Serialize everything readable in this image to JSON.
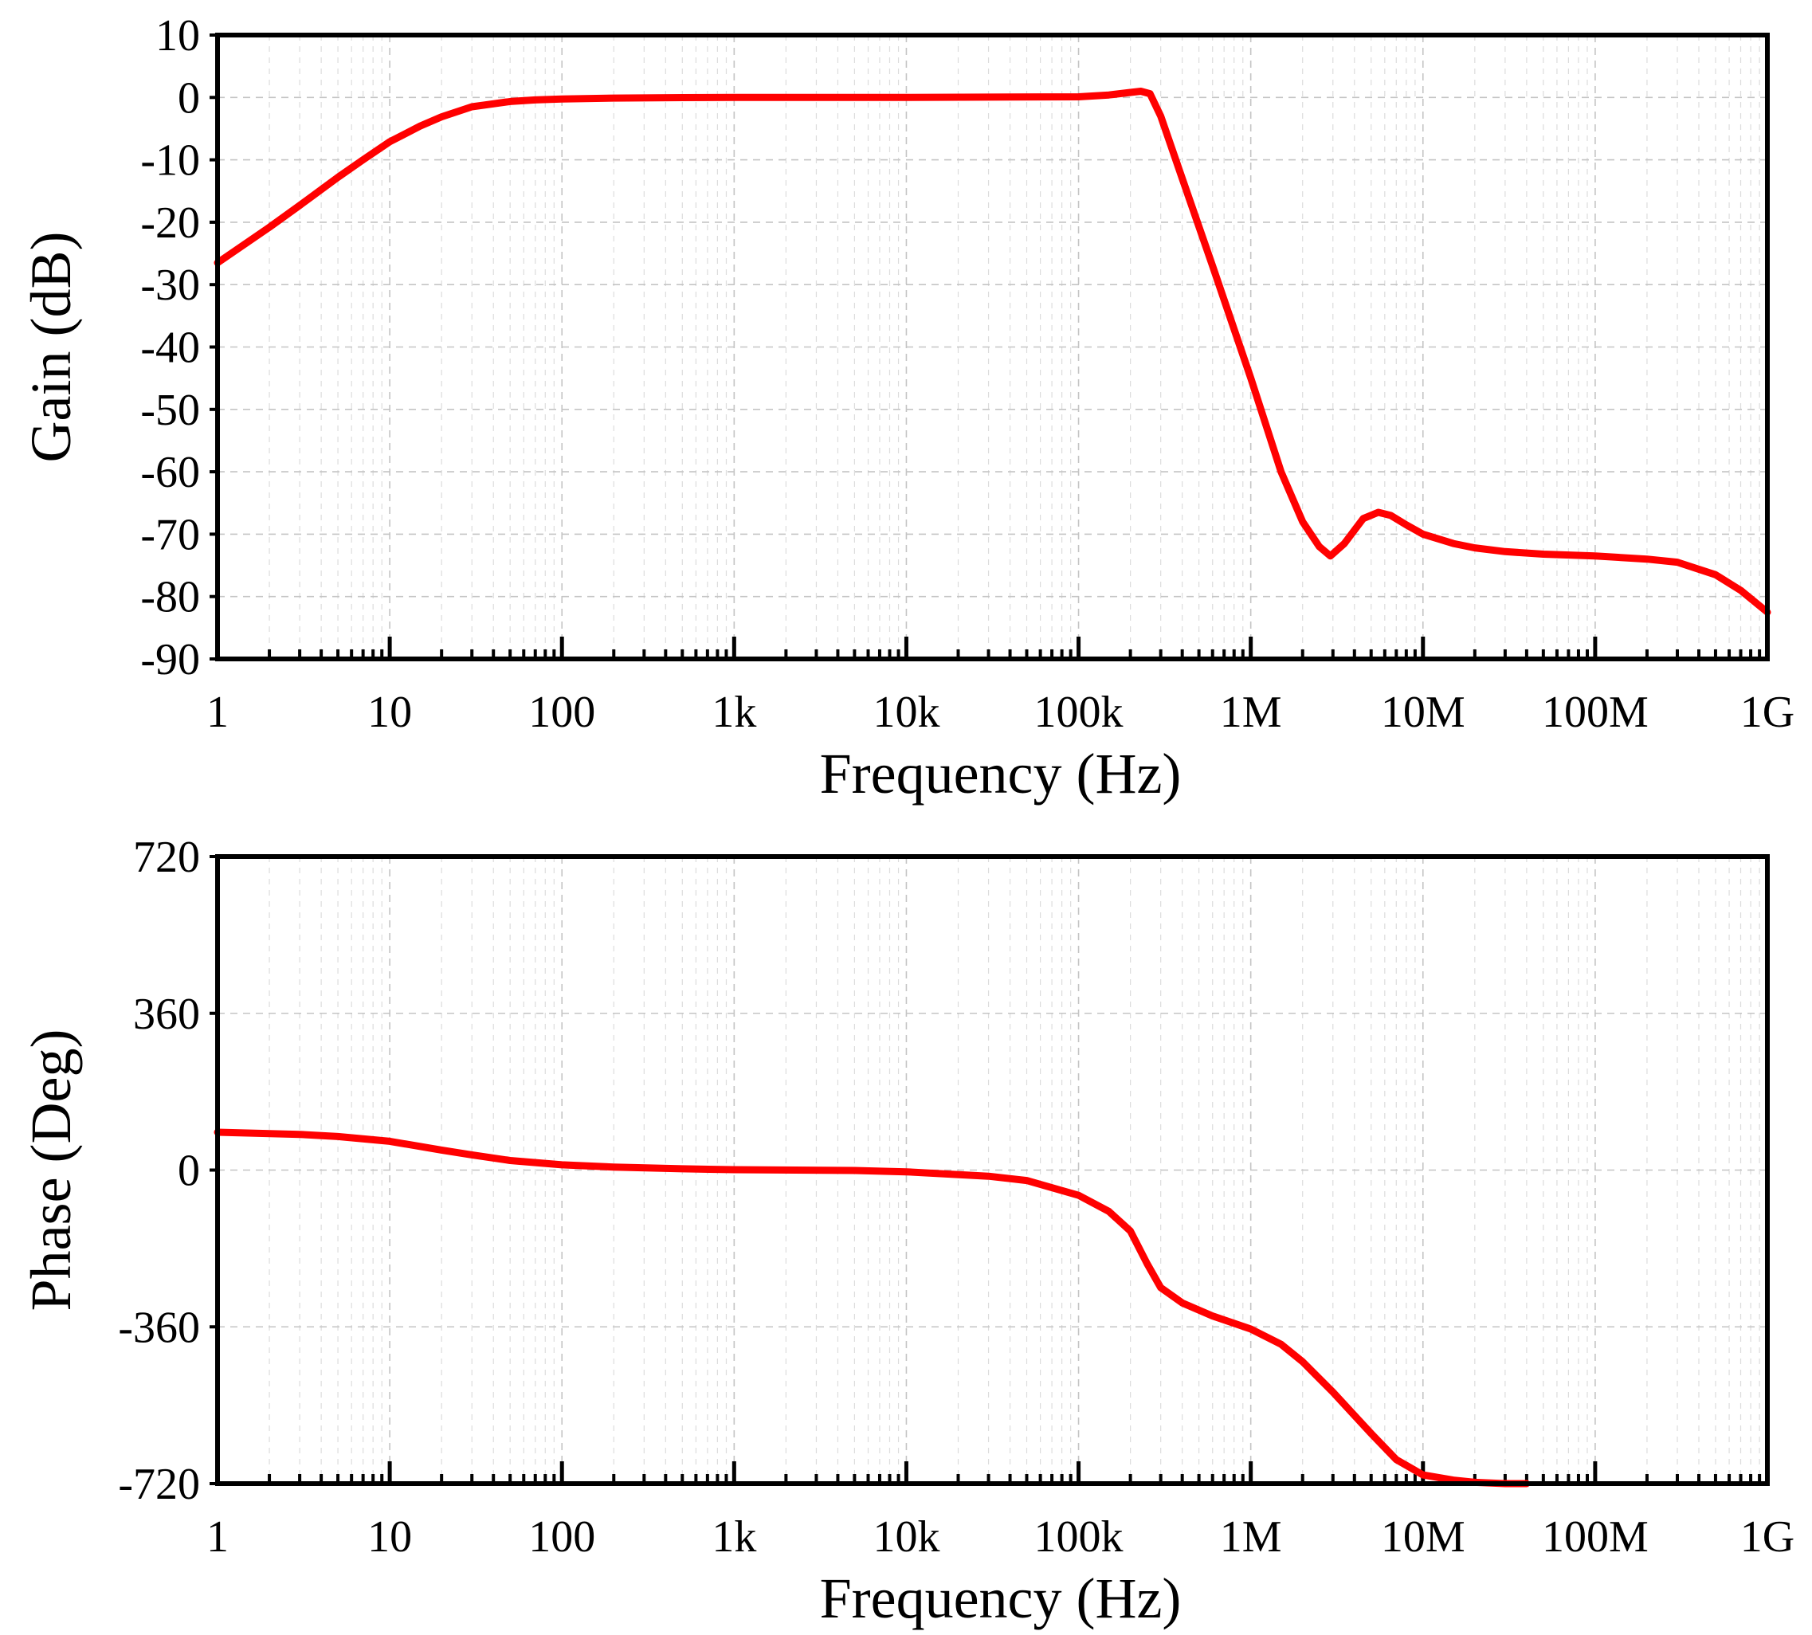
{
  "chart_data": [
    {
      "type": "line",
      "id": "gain",
      "xscale": "log",
      "xlabel": "Frequency (Hz)",
      "ylabel": "Gain (dB)",
      "xlim": [
        1,
        1000000000
      ],
      "ylim": [
        -90,
        10
      ],
      "xticks": [
        {
          "value": 1,
          "label": "1"
        },
        {
          "value": 10,
          "label": "10"
        },
        {
          "value": 100,
          "label": "100"
        },
        {
          "value": 1000,
          "label": "1k"
        },
        {
          "value": 10000,
          "label": "10k"
        },
        {
          "value": 100000,
          "label": "100k"
        },
        {
          "value": 1000000,
          "label": "1M"
        },
        {
          "value": 10000000,
          "label": "10M"
        },
        {
          "value": 100000000,
          "label": "100M"
        },
        {
          "value": 1000000000,
          "label": "1G"
        }
      ],
      "yticks": [
        {
          "value": 10,
          "label": "10"
        },
        {
          "value": 0,
          "label": "0"
        },
        {
          "value": -10,
          "label": "-10"
        },
        {
          "value": -20,
          "label": "-20"
        },
        {
          "value": -30,
          "label": "-30"
        },
        {
          "value": -40,
          "label": "-40"
        },
        {
          "value": -50,
          "label": "-50"
        },
        {
          "value": -60,
          "label": "-60"
        },
        {
          "value": -70,
          "label": "-70"
        },
        {
          "value": -80,
          "label": "-80"
        },
        {
          "value": -90,
          "label": "-90"
        }
      ],
      "grid": true,
      "series": [
        {
          "name": "Gain",
          "color": "#ff0000",
          "x": [
            1,
            2,
            3,
            5,
            7,
            10,
            15,
            20,
            30,
            50,
            70,
            100,
            200,
            500,
            1000,
            10000,
            100000,
            150000,
            200000,
            230000,
            260000,
            300000,
            400000,
            600000,
            1000000,
            1500000,
            2000000,
            2500000,
            2900000,
            3500000,
            4500000,
            5500000,
            6500000,
            8000000,
            10000000,
            15000000,
            20000000,
            30000000,
            50000000,
            100000000,
            200000000,
            300000000,
            500000000,
            700000000,
            1000000000
          ],
          "y": [
            -26.5,
            -20.8,
            -17.3,
            -12.8,
            -10.0,
            -7.1,
            -4.6,
            -3.1,
            -1.5,
            -0.65,
            -0.4,
            -0.25,
            -0.1,
            -0.03,
            0,
            0,
            0.1,
            0.4,
            0.8,
            1.0,
            0.6,
            -3,
            -13,
            -27,
            -45,
            -60,
            -68,
            -72,
            -73.5,
            -71.5,
            -67.5,
            -66.5,
            -67,
            -68.5,
            -70,
            -71.5,
            -72.2,
            -72.8,
            -73.2,
            -73.5,
            -74,
            -74.5,
            -76.5,
            -79,
            -82.5
          ]
        }
      ]
    },
    {
      "type": "line",
      "id": "phase",
      "xscale": "log",
      "xlabel": "Frequency (Hz)",
      "ylabel": "Phase (Deg)",
      "xlim": [
        1,
        1000000000
      ],
      "ylim": [
        -720,
        720
      ],
      "xticks": [
        {
          "value": 1,
          "label": "1"
        },
        {
          "value": 10,
          "label": "10"
        },
        {
          "value": 100,
          "label": "100"
        },
        {
          "value": 1000,
          "label": "1k"
        },
        {
          "value": 10000,
          "label": "10k"
        },
        {
          "value": 100000,
          "label": "100k"
        },
        {
          "value": 1000000,
          "label": "1M"
        },
        {
          "value": 10000000,
          "label": "10M"
        },
        {
          "value": 100000000,
          "label": "100M"
        },
        {
          "value": 1000000000,
          "label": "1G"
        }
      ],
      "yticks": [
        {
          "value": 720,
          "label": "720"
        },
        {
          "value": 360,
          "label": "360"
        },
        {
          "value": 0,
          "label": "0"
        },
        {
          "value": -360,
          "label": "-360"
        },
        {
          "value": -720,
          "label": "-720"
        }
      ],
      "grid": true,
      "series": [
        {
          "name": "Phase",
          "color": "#ff0000",
          "x": [
            1,
            3,
            5,
            10,
            20,
            30,
            50,
            100,
            200,
            500,
            1000,
            5000,
            10000,
            30000,
            50000,
            100000,
            150000,
            200000,
            250000,
            300000,
            400000,
            600000,
            1000000,
            1500000,
            2000000,
            3000000,
            5000000,
            7000000,
            10000000,
            15000000,
            20000000,
            30000000,
            40000000
          ],
          "y": [
            87,
            82,
            77,
            66,
            46,
            35,
            22,
            12,
            7,
            3,
            1,
            -1,
            -4,
            -14,
            -24,
            -58,
            -95,
            -140,
            -215,
            -270,
            -305,
            -335,
            -365,
            -400,
            -440,
            -510,
            -605,
            -665,
            -700,
            -712,
            -717,
            -720,
            -720
          ]
        }
      ]
    }
  ]
}
